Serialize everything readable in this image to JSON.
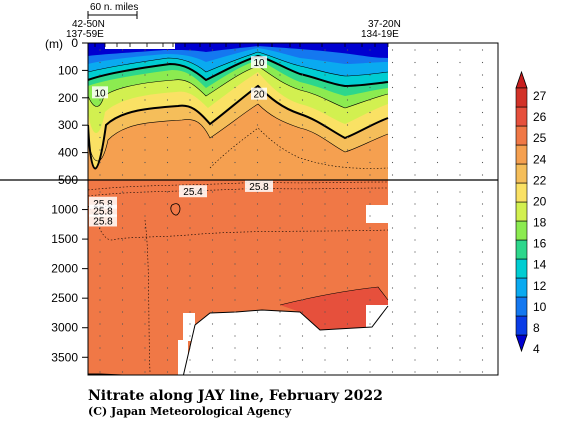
{
  "chart_data": {
    "type": "heatmap",
    "title": "Nitrate along JAY line, February 2022",
    "credit": "(C) Japan Meteorological Agency",
    "ylabel": "(m)",
    "scale_label": "60 n. miles",
    "stations": {
      "start": {
        "lat": "42-50N",
        "lon": "137-59E"
      },
      "end": {
        "lat": "37-20N",
        "lon": "134-19E"
      }
    },
    "y_ticks_upper": [
      0,
      100,
      200,
      300,
      400,
      500
    ],
    "y_ticks_lower": [
      1000,
      1500,
      2000,
      2500,
      3000,
      3500
    ],
    "ylim_upper": [
      0,
      500
    ],
    "ylim_lower": [
      500,
      3800
    ],
    "colorbar": {
      "levels": [
        4,
        6,
        8,
        10,
        12,
        14,
        16,
        18,
        20,
        22,
        24,
        25,
        26,
        27
      ],
      "tick_labels": [
        "4",
        "8",
        "10",
        "12",
        "14",
        "16",
        "18",
        "20",
        "22",
        "24",
        "25",
        "26",
        "27"
      ],
      "colors": [
        "#0000d0",
        "#0a3ce6",
        "#1478f0",
        "#0aaaf0",
        "#00cdd2",
        "#2dd78c",
        "#8ceb50",
        "#d2f050",
        "#fae164",
        "#f5be5a",
        "#f5a050",
        "#f07846",
        "#e6503c",
        "#d23228",
        "#c81e1e"
      ]
    },
    "contour_labels": [
      {
        "text": "10",
        "x": 0.04,
        "depth": 180
      },
      {
        "text": "10",
        "x": 0.57,
        "depth": 70
      },
      {
        "text": "20",
        "x": 0.57,
        "depth": 185
      },
      {
        "text": "25.4",
        "x": 0.35,
        "depth": 690
      },
      {
        "text": "25.8",
        "x": 0.57,
        "depth": 600
      },
      {
        "text": "25.8",
        "x": 0.05,
        "depth": 885
      },
      {
        "text": "25.8",
        "x": 0.05,
        "depth": 1020
      },
      {
        "text": "25.8",
        "x": 0.05,
        "depth": 1185
      }
    ]
  }
}
